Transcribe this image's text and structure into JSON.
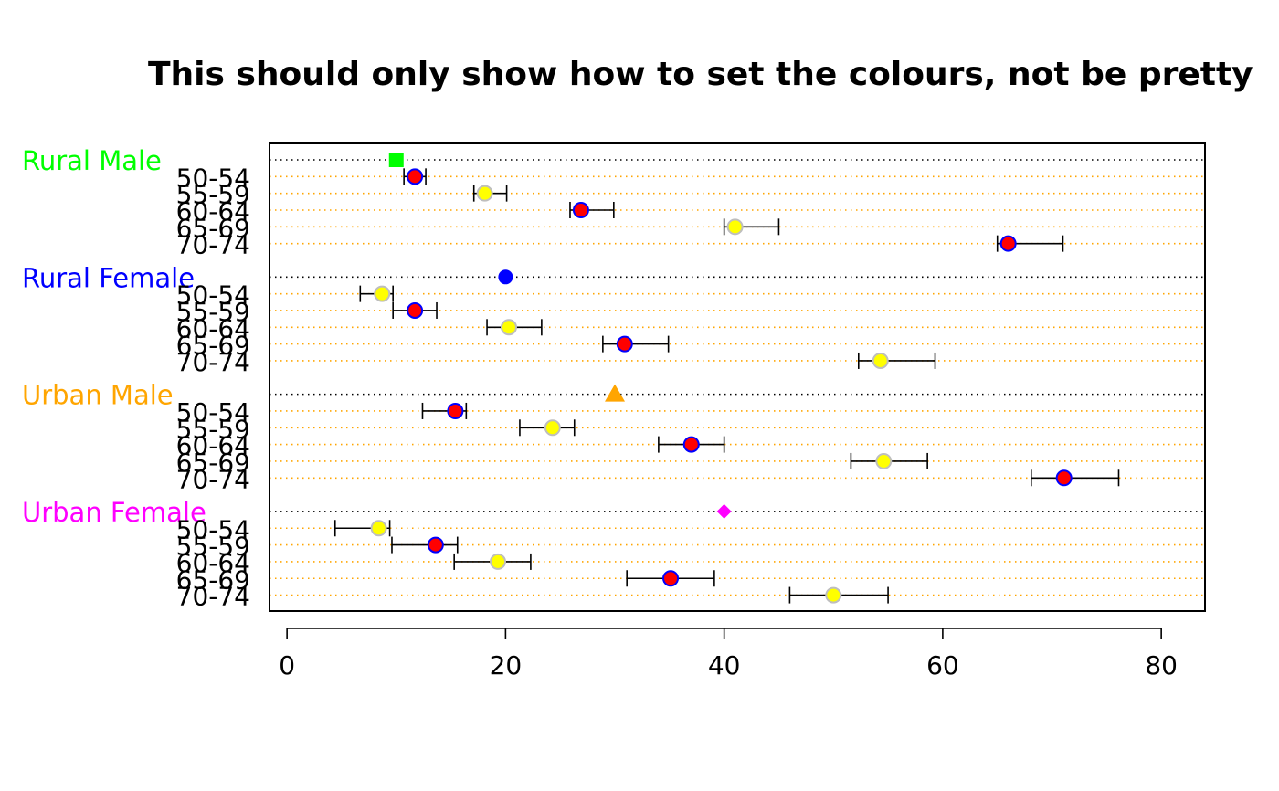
{
  "chart_data": {
    "type": "scatter",
    "title": "This should only show how to set the colours, not be pretty",
    "xlabel": "",
    "ylabel": "",
    "xlim": [
      -1.6,
      84
    ],
    "x_ticks": [
      0,
      20,
      40,
      60,
      80
    ],
    "x_tick_labels": [
      "0",
      "20",
      "40",
      "60",
      "80"
    ],
    "grid": true,
    "gridline_colors": {
      "group": "#000000",
      "row": "#FFA500"
    },
    "point_colors": {
      "red": {
        "fill": "#FF0000",
        "stroke": "#0000FF"
      },
      "yellow": {
        "fill": "#FFFF00",
        "stroke": "#BEBEBE"
      }
    },
    "groups": [
      {
        "label": "Rural Male",
        "label_color": "#00FF00",
        "summary": {
          "value": 10,
          "shape": "square",
          "color": "#00FF00"
        },
        "rows": [
          {
            "label": "50-54",
            "value": 11.7,
            "lower": 10.7,
            "upper": 12.7,
            "marker": "red"
          },
          {
            "label": "55-59",
            "value": 18.1,
            "lower": 17.1,
            "upper": 20.1,
            "marker": "yellow"
          },
          {
            "label": "60-64",
            "value": 26.9,
            "lower": 25.9,
            "upper": 29.9,
            "marker": "red"
          },
          {
            "label": "65-69",
            "value": 41.0,
            "lower": 40.0,
            "upper": 45.0,
            "marker": "yellow"
          },
          {
            "label": "70-74",
            "value": 66.0,
            "lower": 65.0,
            "upper": 71.0,
            "marker": "red"
          }
        ]
      },
      {
        "label": "Rural Female",
        "label_color": "#0000FF",
        "summary": {
          "value": 20,
          "shape": "circle",
          "color": "#0000FF"
        },
        "rows": [
          {
            "label": "50-54",
            "value": 8.7,
            "lower": 6.7,
            "upper": 9.7,
            "marker": "yellow"
          },
          {
            "label": "55-59",
            "value": 11.7,
            "lower": 9.7,
            "upper": 13.7,
            "marker": "red"
          },
          {
            "label": "60-64",
            "value": 20.3,
            "lower": 18.3,
            "upper": 23.3,
            "marker": "yellow"
          },
          {
            "label": "65-69",
            "value": 30.9,
            "lower": 28.9,
            "upper": 34.9,
            "marker": "red"
          },
          {
            "label": "70-74",
            "value": 54.3,
            "lower": 52.3,
            "upper": 59.3,
            "marker": "yellow"
          }
        ]
      },
      {
        "label": "Urban Male",
        "label_color": "#FFA500",
        "summary": {
          "value": 30,
          "shape": "triangle",
          "color": "#FFA500"
        },
        "rows": [
          {
            "label": "50-54",
            "value": 15.4,
            "lower": 12.4,
            "upper": 16.4,
            "marker": "red"
          },
          {
            "label": "55-59",
            "value": 24.3,
            "lower": 21.3,
            "upper": 26.3,
            "marker": "yellow"
          },
          {
            "label": "60-64",
            "value": 37.0,
            "lower": 34.0,
            "upper": 40.0,
            "marker": "red"
          },
          {
            "label": "65-69",
            "value": 54.6,
            "lower": 51.6,
            "upper": 58.6,
            "marker": "yellow"
          },
          {
            "label": "70-74",
            "value": 71.1,
            "lower": 68.1,
            "upper": 76.1,
            "marker": "red"
          }
        ]
      },
      {
        "label": "Urban Female",
        "label_color": "#FF00FF",
        "summary": {
          "value": 40,
          "shape": "diamond",
          "color": "#FF00FF"
        },
        "rows": [
          {
            "label": "50-54",
            "value": 8.4,
            "lower": 4.4,
            "upper": 9.4,
            "marker": "yellow"
          },
          {
            "label": "55-59",
            "value": 13.6,
            "lower": 9.6,
            "upper": 15.6,
            "marker": "red"
          },
          {
            "label": "60-64",
            "value": 19.3,
            "lower": 15.3,
            "upper": 22.3,
            "marker": "yellow"
          },
          {
            "label": "65-69",
            "value": 35.1,
            "lower": 31.1,
            "upper": 39.1,
            "marker": "red"
          },
          {
            "label": "70-74",
            "value": 50.0,
            "lower": 46.0,
            "upper": 55.0,
            "marker": "yellow"
          }
        ]
      }
    ]
  }
}
